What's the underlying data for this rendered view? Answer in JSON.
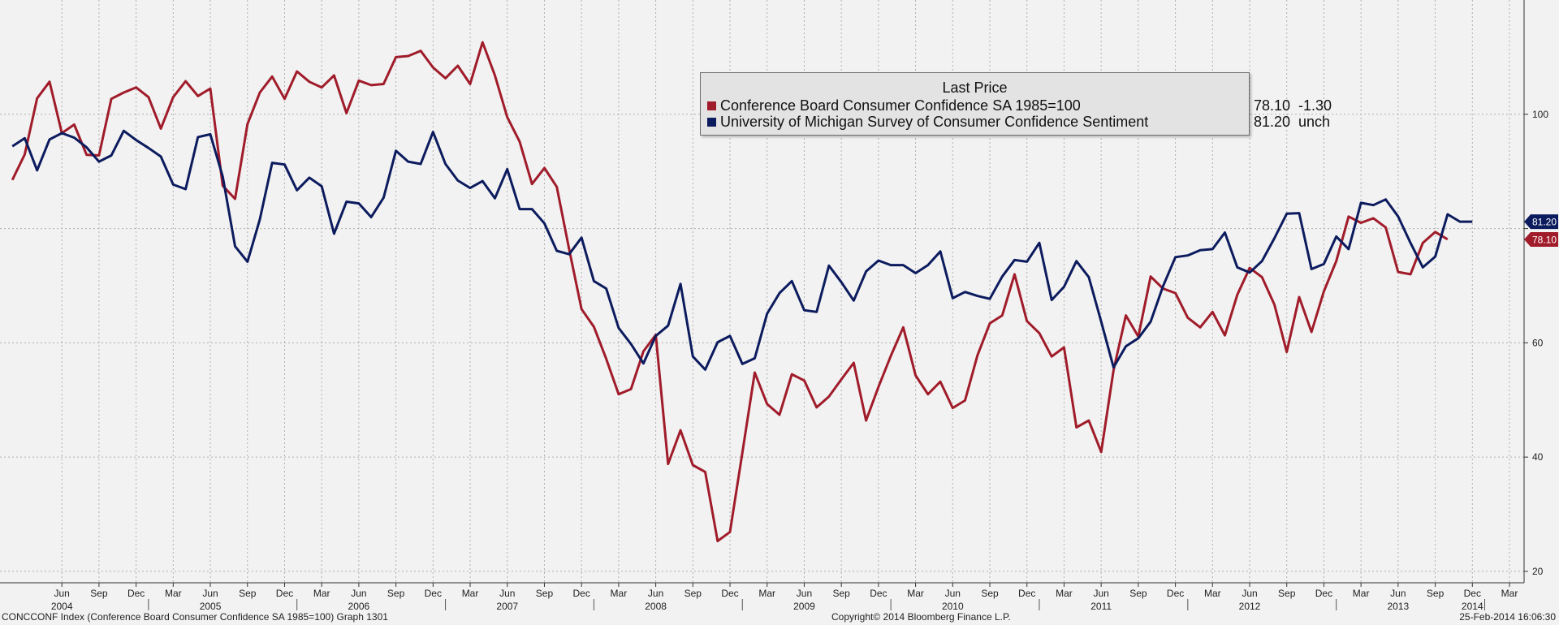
{
  "legend": {
    "header": "Last Price",
    "rows": [
      {
        "name": "Conference Board Consumer Confidence SA 1985=100",
        "last": "78.10",
        "change": "-1.30",
        "color": "#a01c2a"
      },
      {
        "name": "University of Michigan Survey of Consumer Confidence Sentiment",
        "last": "81.20",
        "change": "unch",
        "color": "#0c1b5e"
      }
    ]
  },
  "footer": {
    "left": "CONCCONF Index (Conference Board Consumer Confidence SA 1985=100) Graph 1301",
    "center": "Copyright© 2014 Bloomberg Finance L.P.",
    "right": "25-Feb-2014 16:06:30"
  },
  "chart_data": {
    "type": "line",
    "x_start": "2004-03",
    "x_end": "2014-02",
    "ylim": [
      18,
      120
    ],
    "yticks": [
      20,
      40,
      60,
      80,
      100
    ],
    "ytick_labels": [
      "20",
      "40",
      "60",
      "",
      "100"
    ],
    "grid": true,
    "month_ticks": [
      {
        "date": "2004-06",
        "label": "Jun"
      },
      {
        "date": "2004-09",
        "label": "Sep"
      },
      {
        "date": "2004-12",
        "label": "Dec"
      },
      {
        "date": "2005-03",
        "label": "Mar"
      },
      {
        "date": "2005-06",
        "label": "Jun"
      },
      {
        "date": "2005-09",
        "label": "Sep"
      },
      {
        "date": "2005-12",
        "label": "Dec"
      },
      {
        "date": "2006-03",
        "label": "Mar"
      },
      {
        "date": "2006-06",
        "label": "Jun"
      },
      {
        "date": "2006-09",
        "label": "Sep"
      },
      {
        "date": "2006-12",
        "label": "Dec"
      },
      {
        "date": "2007-03",
        "label": "Mar"
      },
      {
        "date": "2007-06",
        "label": "Jun"
      },
      {
        "date": "2007-09",
        "label": "Sep"
      },
      {
        "date": "2007-12",
        "label": "Dec"
      },
      {
        "date": "2008-03",
        "label": "Mar"
      },
      {
        "date": "2008-06",
        "label": "Jun"
      },
      {
        "date": "2008-09",
        "label": "Sep"
      },
      {
        "date": "2008-12",
        "label": "Dec"
      },
      {
        "date": "2009-03",
        "label": "Mar"
      },
      {
        "date": "2009-06",
        "label": "Jun"
      },
      {
        "date": "2009-09",
        "label": "Sep"
      },
      {
        "date": "2009-12",
        "label": "Dec"
      },
      {
        "date": "2010-03",
        "label": "Mar"
      },
      {
        "date": "2010-06",
        "label": "Jun"
      },
      {
        "date": "2010-09",
        "label": "Sep"
      },
      {
        "date": "2010-12",
        "label": "Dec"
      },
      {
        "date": "2011-03",
        "label": "Mar"
      },
      {
        "date": "2011-06",
        "label": "Jun"
      },
      {
        "date": "2011-09",
        "label": "Sep"
      },
      {
        "date": "2011-12",
        "label": "Dec"
      },
      {
        "date": "2012-03",
        "label": "Mar"
      },
      {
        "date": "2012-06",
        "label": "Jun"
      },
      {
        "date": "2012-09",
        "label": "Sep"
      },
      {
        "date": "2012-12",
        "label": "Dec"
      },
      {
        "date": "2013-03",
        "label": "Mar"
      },
      {
        "date": "2013-06",
        "label": "Jun"
      },
      {
        "date": "2013-09",
        "label": "Sep"
      },
      {
        "date": "2013-12",
        "label": "Dec"
      },
      {
        "date": "2014-03",
        "label": "Mar"
      }
    ],
    "year_labels": [
      {
        "date": "2004-06",
        "label": "2004"
      },
      {
        "date": "2005-06",
        "label": "2005"
      },
      {
        "date": "2006-06",
        "label": "2006"
      },
      {
        "date": "2007-06",
        "label": "2007"
      },
      {
        "date": "2008-06",
        "label": "2008"
      },
      {
        "date": "2009-06",
        "label": "2009"
      },
      {
        "date": "2010-06",
        "label": "2010"
      },
      {
        "date": "2011-06",
        "label": "2011"
      },
      {
        "date": "2012-06",
        "label": "2012"
      },
      {
        "date": "2013-06",
        "label": "2013"
      },
      {
        "date": "2013-12",
        "label": "2014"
      }
    ],
    "series": [
      {
        "name": "Conference Board Consumer Confidence SA 1985=100",
        "color": "#a01c2a",
        "last_label": "78.10",
        "values": [
          88.5,
          93.0,
          102.8,
          105.7,
          96.7,
          98.2,
          92.9,
          92.8,
          102.7,
          103.8,
          104.7,
          103.0,
          97.5,
          103.0,
          105.8,
          103.2,
          104.5,
          87.5,
          85.2,
          98.3,
          103.8,
          106.6,
          102.7,
          107.5,
          105.7,
          104.7,
          106.8,
          100.2,
          105.9,
          105.1,
          105.3,
          110.0,
          110.2,
          111.1,
          108.2,
          106.3,
          108.5,
          105.3,
          112.6,
          106.8,
          99.5,
          95.2,
          87.8,
          90.6,
          87.3,
          76.4,
          65.9,
          62.8,
          57.2,
          51.0,
          51.9,
          58.5,
          61.4,
          38.8,
          44.7,
          38.6,
          37.4,
          25.3,
          26.9,
          40.8,
          54.8,
          49.3,
          47.4,
          54.5,
          53.4,
          48.7,
          50.6,
          53.6,
          56.5,
          46.4,
          52.3,
          57.7,
          62.7,
          54.3,
          51.0,
          53.2,
          48.6,
          49.9,
          57.8,
          63.4,
          64.8,
          72.0,
          63.8,
          61.7,
          57.6,
          59.2,
          45.2,
          46.4,
          40.9,
          55.2,
          64.8,
          61.1,
          71.6,
          69.5,
          68.7,
          64.4,
          62.7,
          65.4,
          61.3,
          68.4,
          73.1,
          71.5,
          66.7,
          58.4,
          68.0,
          61.9,
          69.0,
          74.3,
          82.1,
          81.0,
          81.8,
          80.2,
          72.4,
          72.0,
          77.5,
          79.4,
          78.1
        ],
        "start": "2004-02"
      },
      {
        "name": "University of Michigan Survey of Consumer Confidence Sentiment",
        "color": "#0c1b5e",
        "last_label": "81.20",
        "values": [
          94.4,
          95.8,
          90.2,
          95.6,
          96.7,
          95.9,
          94.2,
          91.7,
          92.8,
          97.1,
          95.5,
          94.1,
          92.6,
          87.7,
          86.9,
          96.0,
          96.5,
          89.1,
          76.9,
          74.2,
          81.6,
          91.5,
          91.2,
          86.7,
          88.9,
          87.4,
          79.1,
          84.7,
          84.4,
          82.0,
          85.4,
          93.6,
          91.7,
          91.3,
          96.9,
          91.3,
          88.4,
          87.1,
          88.3,
          85.3,
          90.4,
          83.4,
          83.4,
          80.9,
          76.1,
          75.5,
          78.4,
          70.8,
          69.5,
          62.6,
          59.8,
          56.4,
          61.2,
          63.0,
          70.3,
          57.6,
          55.3,
          60.1,
          61.2,
          56.3,
          57.3,
          65.1,
          68.7,
          70.8,
          65.7,
          65.4,
          73.5,
          70.6,
          67.4,
          72.5,
          74.4,
          73.6,
          73.6,
          72.2,
          73.6,
          76.0,
          67.8,
          68.9,
          68.2,
          67.7,
          71.6,
          74.5,
          74.2,
          77.5,
          67.5,
          69.8,
          74.3,
          71.5,
          63.7,
          55.7,
          59.4,
          60.8,
          63.7,
          69.9,
          75.0,
          75.3,
          76.2,
          76.4,
          79.3,
          73.2,
          72.3,
          74.3,
          78.3,
          82.6,
          82.7,
          72.9,
          73.8,
          78.6,
          76.4,
          84.5,
          84.1,
          85.1,
          82.1,
          77.5,
          73.2,
          75.1,
          82.5,
          81.2,
          81.2
        ]
      }
    ]
  }
}
